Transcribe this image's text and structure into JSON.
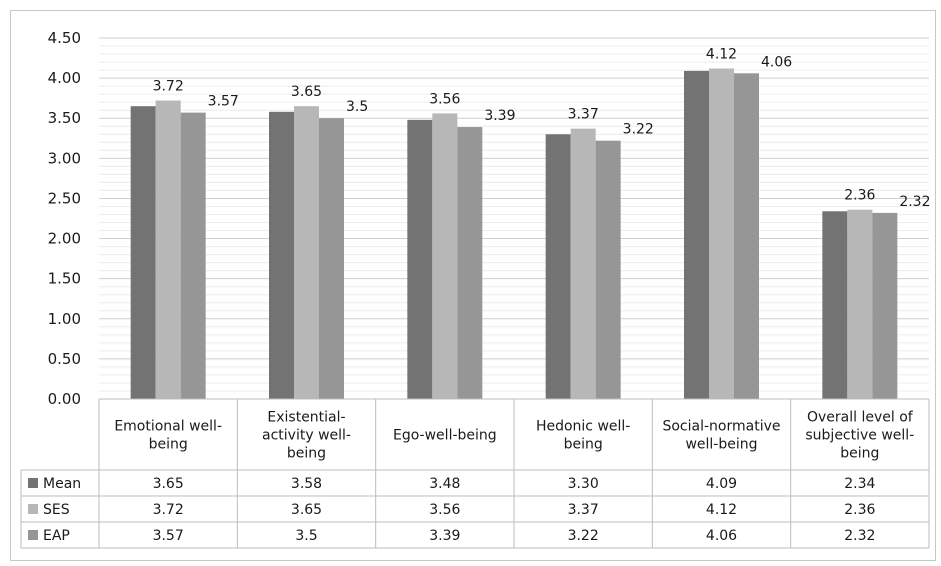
{
  "chart_data": {
    "type": "bar",
    "categories": [
      [
        "Emotional well-",
        "being"
      ],
      [
        "Existential-",
        "activity well-",
        "being"
      ],
      [
        "Ego-well-being"
      ],
      [
        "Hedonic well-",
        "being"
      ],
      [
        "Social-normative",
        "well-being"
      ],
      [
        "Overall level of",
        "subjective well-",
        "being"
      ]
    ],
    "ylim": [
      0,
      4.5
    ],
    "yticks": [
      "0.00",
      "0.50",
      "1.00",
      "1.50",
      "2.00",
      "2.50",
      "3.00",
      "3.50",
      "4.00",
      "4.50"
    ],
    "grid": true,
    "legend": "data-table-left",
    "series": [
      {
        "name": "Mean",
        "color": "#737373",
        "values": [
          3.65,
          3.58,
          3.48,
          3.3,
          4.09,
          2.34
        ],
        "table_values": [
          "3.65",
          "3.58",
          "3.48",
          "3.30",
          "4.09",
          "2.34"
        ],
        "bar_labels": [
          "",
          "",
          "",
          "",
          "",
          ""
        ]
      },
      {
        "name": "SES",
        "color": "#b7b7b7",
        "values": [
          3.72,
          3.65,
          3.56,
          3.37,
          4.12,
          2.36
        ],
        "table_values": [
          "3.72",
          "3.65",
          "3.56",
          "3.37",
          "4.12",
          "2.36"
        ],
        "bar_labels": [
          "3.72",
          "3.65",
          "3.56",
          "3.37",
          "4.12",
          "2.36"
        ]
      },
      {
        "name": "EAP",
        "color": "#969696",
        "values": [
          3.57,
          3.5,
          3.39,
          3.22,
          4.06,
          2.32
        ],
        "table_values": [
          "3.57",
          "3.5",
          "3.39",
          "3.22",
          "4.06",
          "2.32"
        ],
        "bar_labels": [
          "3.57",
          "3.5",
          "3.39",
          "3.22",
          "4.06",
          "2.32"
        ]
      }
    ]
  }
}
